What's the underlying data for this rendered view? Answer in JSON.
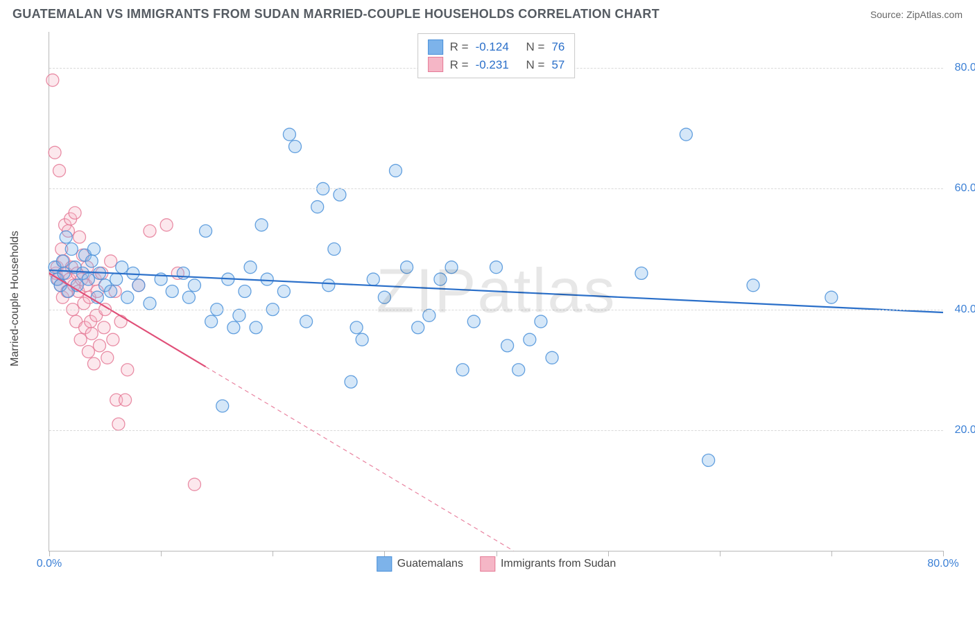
{
  "title": "GUATEMALAN VS IMMIGRANTS FROM SUDAN MARRIED-COUPLE HOUSEHOLDS CORRELATION CHART",
  "source": "Source: ZipAtlas.com",
  "watermark": "ZIPatlas",
  "ylabel": "Married-couple Households",
  "chart": {
    "type": "scatter",
    "background_color": "#ffffff",
    "grid_color": "#d9d9d9",
    "axis_color": "#b8b8b8",
    "tick_label_color": "#3a7fd5",
    "xlim": [
      0,
      80
    ],
    "ylim": [
      0,
      86
    ],
    "yticks": [
      20,
      40,
      60,
      80
    ],
    "ytick_labels": [
      "20.0%",
      "40.0%",
      "60.0%",
      "80.0%"
    ],
    "xticks": [
      0,
      10,
      20,
      30,
      40,
      50,
      60,
      70,
      80
    ],
    "xtick_labels_shown": {
      "0": "0.0%",
      "80": "80.0%"
    },
    "marker_radius": 9,
    "marker_fill_opacity": 0.32,
    "marker_stroke_opacity": 0.85,
    "marker_stroke_width": 1.3,
    "line_width": 2.2,
    "dash_pattern": "6 5"
  },
  "series": {
    "guatemalans": {
      "label": "Guatemalans",
      "color": "#7db3ea",
      "stroke": "#4a90d9",
      "line_color": "#2a6fc9",
      "R": "-0.124",
      "N": "76",
      "trend": {
        "x0": 0,
        "y0": 46.5,
        "x1": 80,
        "y1": 39.5,
        "extrapolate_from_x": 80
      },
      "points": [
        [
          0.5,
          47
        ],
        [
          0.7,
          45
        ],
        [
          1,
          44
        ],
        [
          1.2,
          48
        ],
        [
          1.3,
          46
        ],
        [
          1.5,
          52
        ],
        [
          1.7,
          43
        ],
        [
          2,
          50
        ],
        [
          2.3,
          47
        ],
        [
          2.5,
          44
        ],
        [
          3,
          46
        ],
        [
          3.2,
          49
        ],
        [
          3.5,
          45
        ],
        [
          3.8,
          48
        ],
        [
          4,
          50
        ],
        [
          4.3,
          42
        ],
        [
          4.5,
          46
        ],
        [
          5,
          44
        ],
        [
          5.5,
          43
        ],
        [
          6,
          45
        ],
        [
          6.5,
          47
        ],
        [
          7,
          42
        ],
        [
          7.5,
          46
        ],
        [
          8,
          44
        ],
        [
          9,
          41
        ],
        [
          10,
          45
        ],
        [
          11,
          43
        ],
        [
          12,
          46
        ],
        [
          12.5,
          42
        ],
        [
          13,
          44
        ],
        [
          14,
          53
        ],
        [
          14.5,
          38
        ],
        [
          15,
          40
        ],
        [
          15.5,
          24
        ],
        [
          16,
          45
        ],
        [
          16.5,
          37
        ],
        [
          17,
          39
        ],
        [
          17.5,
          43
        ],
        [
          18,
          47
        ],
        [
          18.5,
          37
        ],
        [
          19,
          54
        ],
        [
          19.5,
          45
        ],
        [
          20,
          40
        ],
        [
          21,
          43
        ],
        [
          21.5,
          69
        ],
        [
          22,
          67
        ],
        [
          23,
          38
        ],
        [
          24,
          57
        ],
        [
          24.5,
          60
        ],
        [
          25,
          44
        ],
        [
          25.5,
          50
        ],
        [
          26,
          59
        ],
        [
          27,
          28
        ],
        [
          27.5,
          37
        ],
        [
          28,
          35
        ],
        [
          29,
          45
        ],
        [
          30,
          42
        ],
        [
          31,
          63
        ],
        [
          32,
          47
        ],
        [
          33,
          37
        ],
        [
          34,
          39
        ],
        [
          35,
          45
        ],
        [
          36,
          47
        ],
        [
          37,
          30
        ],
        [
          38,
          38
        ],
        [
          40,
          47
        ],
        [
          41,
          34
        ],
        [
          42,
          30
        ],
        [
          43,
          35
        ],
        [
          44,
          38
        ],
        [
          45,
          32
        ],
        [
          53,
          46
        ],
        [
          57,
          69
        ],
        [
          59,
          15
        ],
        [
          63,
          44
        ],
        [
          70,
          42
        ]
      ]
    },
    "sudan": {
      "label": "Immigrants from Sudan",
      "color": "#f5b6c6",
      "stroke": "#e57a96",
      "line_color": "#e04f78",
      "R": "-0.231",
      "N": "57",
      "trend": {
        "x0": 0,
        "y0": 46,
        "x1": 14,
        "y1": 30.5,
        "extrapolate_from_x": 14
      },
      "points": [
        [
          0.3,
          78
        ],
        [
          0.5,
          66
        ],
        [
          0.6,
          46
        ],
        [
          0.7,
          47
        ],
        [
          0.8,
          45
        ],
        [
          0.9,
          63
        ],
        [
          1.0,
          44
        ],
        [
          1.1,
          50
        ],
        [
          1.2,
          42
        ],
        [
          1.3,
          48
        ],
        [
          1.4,
          54
        ],
        [
          1.5,
          46
        ],
        [
          1.6,
          43
        ],
        [
          1.7,
          53
        ],
        [
          1.8,
          45
        ],
        [
          1.9,
          55
        ],
        [
          2.0,
          47
        ],
        [
          2.1,
          40
        ],
        [
          2.2,
          44
        ],
        [
          2.3,
          56
        ],
        [
          2.4,
          38
        ],
        [
          2.5,
          46
        ],
        [
          2.6,
          43
        ],
        [
          2.7,
          52
        ],
        [
          2.8,
          35
        ],
        [
          2.9,
          45
        ],
        [
          3.0,
          49
        ],
        [
          3.1,
          41
        ],
        [
          3.2,
          37
        ],
        [
          3.3,
          44
        ],
        [
          3.4,
          47
        ],
        [
          3.5,
          33
        ],
        [
          3.6,
          42
        ],
        [
          3.7,
          38
        ],
        [
          3.8,
          36
        ],
        [
          4.0,
          31
        ],
        [
          4.1,
          45
        ],
        [
          4.2,
          39
        ],
        [
          4.3,
          43
        ],
        [
          4.5,
          34
        ],
        [
          4.7,
          46
        ],
        [
          4.9,
          37
        ],
        [
          5.0,
          40
        ],
        [
          5.2,
          32
        ],
        [
          5.5,
          48
        ],
        [
          5.7,
          35
        ],
        [
          5.9,
          43
        ],
        [
          6.0,
          25
        ],
        [
          6.2,
          21
        ],
        [
          6.4,
          38
        ],
        [
          6.8,
          25
        ],
        [
          7.0,
          30
        ],
        [
          8.0,
          44
        ],
        [
          9.0,
          53
        ],
        [
          10.5,
          54
        ],
        [
          11.5,
          46
        ],
        [
          13.0,
          11
        ]
      ]
    }
  },
  "legend_top": {
    "r_label": "R =",
    "n_label": "N ="
  }
}
